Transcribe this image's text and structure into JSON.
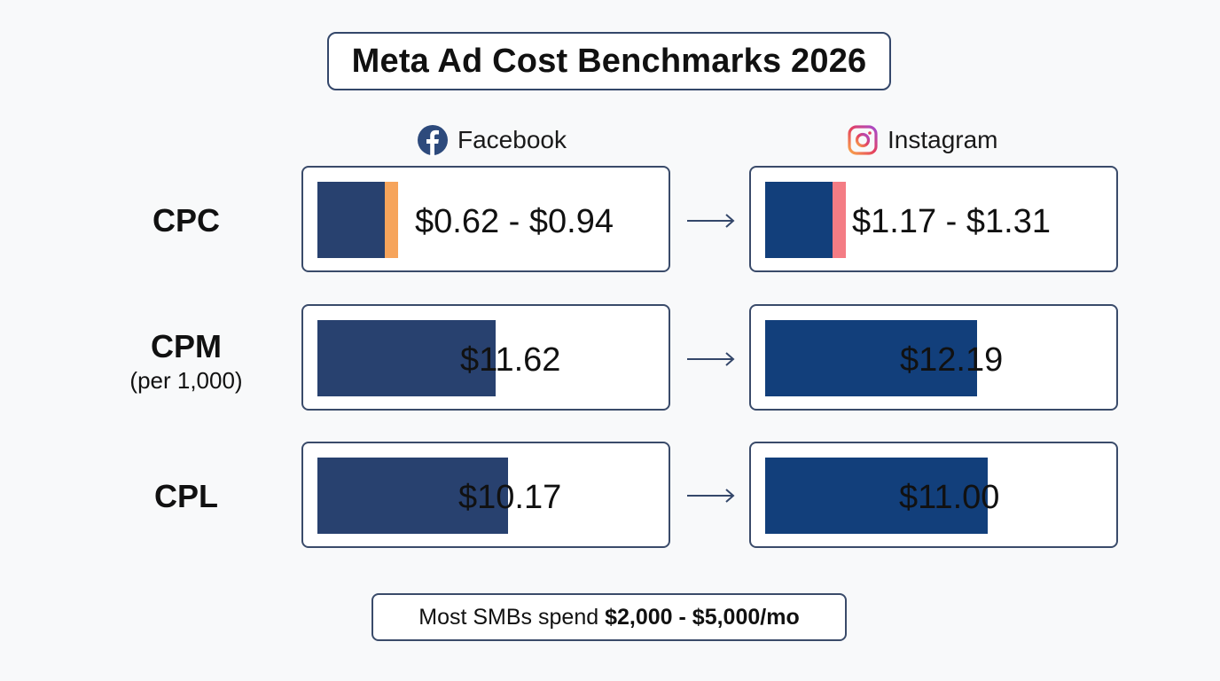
{
  "colors": {
    "bar_facebook": "#28416f",
    "bar_instagram": "#123f7b",
    "accent_facebook": "#f6a45b",
    "accent_instagram": "#f47c84",
    "border": "#3a4b6a"
  },
  "chart_data": {
    "type": "bar",
    "title": "Meta Ad Cost Benchmarks 2026",
    "series": [
      {
        "name": "Facebook",
        "icon": "facebook-icon"
      },
      {
        "name": "Instagram",
        "icon": "instagram-icon"
      }
    ],
    "rows": [
      {
        "label": "CPC",
        "sublabel": "",
        "facebook": {
          "text": "$0.62 - $0.94",
          "low": 0.62,
          "high": 0.94,
          "fill": 0.2
        },
        "instagram": {
          "text": "$1.17 - $1.31",
          "low": 1.17,
          "high": 1.31,
          "fill": 0.2
        }
      },
      {
        "label": "CPM",
        "sublabel": "(per 1,000)",
        "facebook": {
          "text": "$11.62",
          "value": 11.62,
          "fill": 0.53
        },
        "instagram": {
          "text": "$12.19",
          "value": 12.19,
          "fill": 0.63
        }
      },
      {
        "label": "CPL",
        "sublabel": "",
        "facebook": {
          "text": "$10.17",
          "value": 10.17,
          "fill": 0.565
        },
        "instagram": {
          "text": "$11.00",
          "value": 11.0,
          "fill": 0.66
        }
      }
    ]
  },
  "footer": {
    "prefix": "Most SMBs spend",
    "highlight": "$2,000 - $5,000/mo"
  }
}
